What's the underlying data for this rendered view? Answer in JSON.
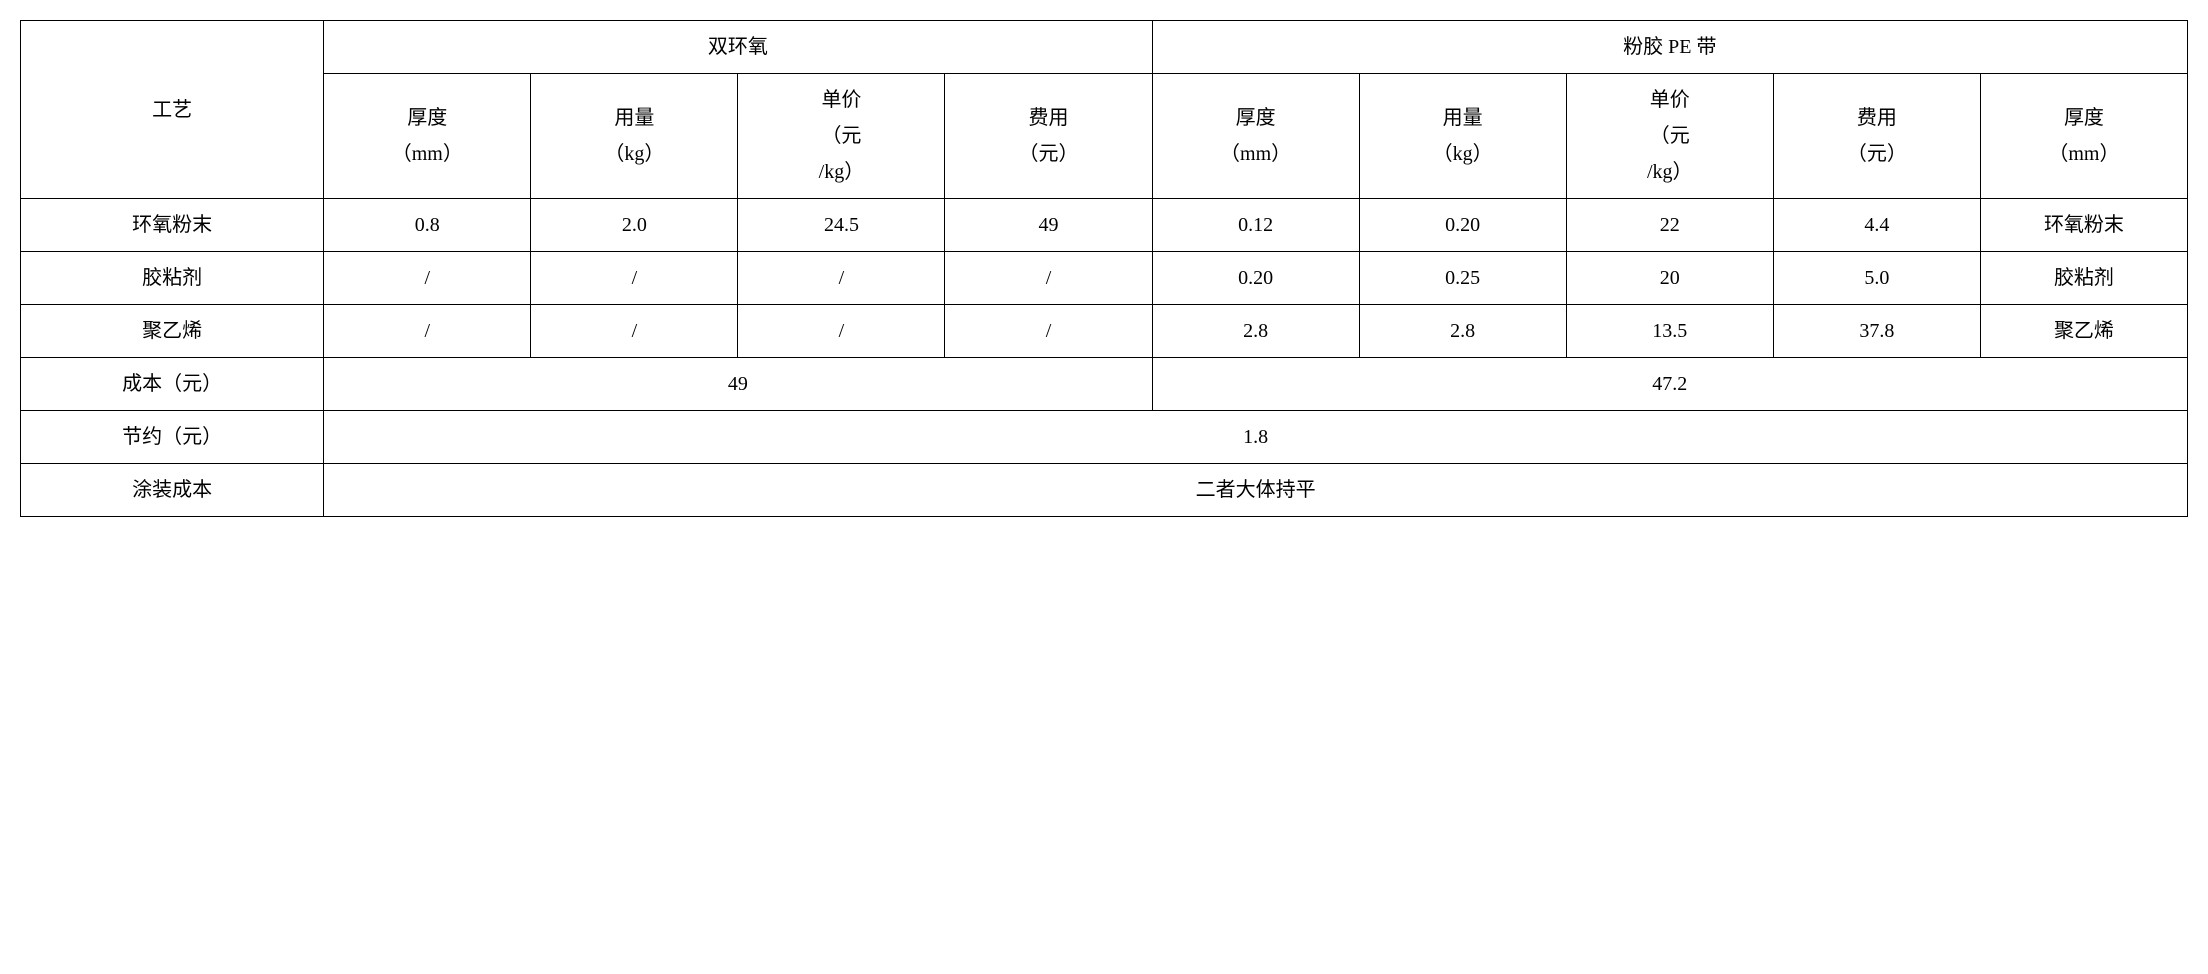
{
  "headers": {
    "process": "工艺",
    "group1": "双环氧",
    "group2": "粉胶 PE 带",
    "thickness": "厚度\n（mm）",
    "amount": "用量\n（kg）",
    "unitPrice": "单价\n（元\n/kg）",
    "cost": "费用\n（元）",
    "thickness2": "厚度\n（mm）"
  },
  "rows": {
    "epoxy": {
      "label": "环氧粉末",
      "g1_thickness": "0.8",
      "g1_amount": "2.0",
      "g1_unitprice": "24.5",
      "g1_cost": "49",
      "g2_thickness": "0.12",
      "g2_amount": "0.20",
      "g2_unitprice": "22",
      "g2_cost": "4.4",
      "g2_extra": "环氧粉末"
    },
    "adhesive": {
      "label": "胶粘剂",
      "g1_thickness": "/",
      "g1_amount": "/",
      "g1_unitprice": "/",
      "g1_cost": "/",
      "g2_thickness": "0.20",
      "g2_amount": "0.25",
      "g2_unitprice": "20",
      "g2_cost": "5.0",
      "g2_extra": "胶粘剂"
    },
    "pe": {
      "label": "聚乙烯",
      "g1_thickness": "/",
      "g1_amount": "/",
      "g1_unitprice": "/",
      "g1_cost": "/",
      "g2_thickness": "2.8",
      "g2_amount": "2.8",
      "g2_unitprice": "13.5",
      "g2_cost": "37.8",
      "g2_extra": "聚乙烯"
    }
  },
  "summary": {
    "costLabel": "成本（元）",
    "cost1": "49",
    "cost2": "47.2",
    "saveLabel": "节约（元）",
    "saveValue": "1.8",
    "coatLabel": "涂装成本",
    "coatValue": "二者大体持平"
  },
  "styling": {
    "borderColor": "#000000",
    "backgroundColor": "#ffffff",
    "fontFamily": "SimSun",
    "fontSize": 20,
    "borderWidth": 1.5
  }
}
